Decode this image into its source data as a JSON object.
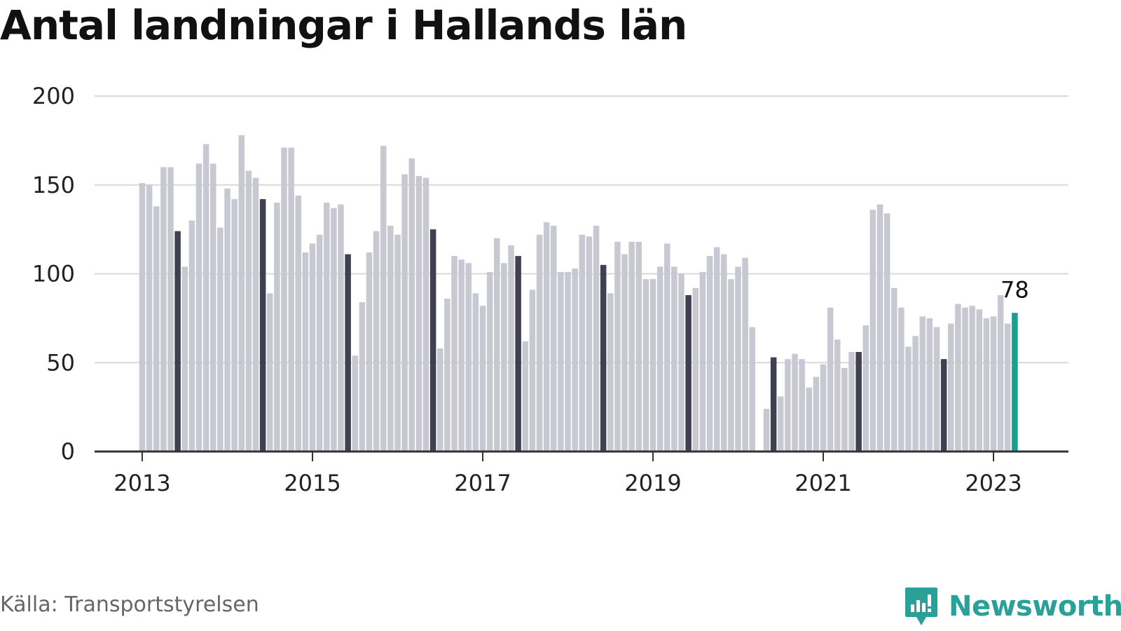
{
  "chart_data": {
    "type": "bar",
    "title": "Antal landningar i Hallands län",
    "xlabel": "",
    "ylabel": "",
    "ylim": [
      0,
      200
    ],
    "yticks": [
      "0",
      "50",
      "100",
      "150",
      "200"
    ],
    "xticks": [
      "2013",
      "2015",
      "2017",
      "2019",
      "2021",
      "2023"
    ],
    "grid": true,
    "legend": "none",
    "start_month": "2013-01",
    "values": [
      151,
      150,
      138,
      160,
      160,
      124,
      104,
      130,
      162,
      173,
      162,
      126,
      148,
      142,
      178,
      158,
      154,
      142,
      89,
      140,
      171,
      171,
      144,
      112,
      117,
      122,
      140,
      137,
      139,
      111,
      54,
      84,
      112,
      124,
      172,
      127,
      122,
      156,
      165,
      155,
      154,
      125,
      58,
      86,
      110,
      108,
      106,
      89,
      82,
      101,
      120,
      106,
      116,
      110,
      62,
      91,
      122,
      129,
      127,
      101,
      101,
      103,
      122,
      121,
      127,
      105,
      89,
      118,
      111,
      118,
      118,
      97,
      97,
      104,
      117,
      104,
      100,
      88,
      92,
      101,
      110,
      115,
      111,
      97,
      104,
      109,
      70,
      null,
      24,
      53,
      31,
      52,
      55,
      52,
      36,
      42,
      49,
      81,
      63,
      47,
      56,
      56,
      71,
      136,
      139,
      134,
      92,
      81,
      59,
      65,
      76,
      75,
      70,
      52,
      72,
      83,
      81,
      82,
      80,
      75,
      76,
      88,
      72,
      78
    ],
    "highlight_month": 5,
    "annotation": "78",
    "colors": {
      "bar": "#c8c8d2",
      "highlight": "#3f4050",
      "latest": "#1a9e92",
      "grid": "#d9d9d9",
      "axis": "#333333"
    }
  },
  "source": "Källa: Transportstyrelsen",
  "brand": "Newsworthy",
  "brand_color": "#2aa198"
}
